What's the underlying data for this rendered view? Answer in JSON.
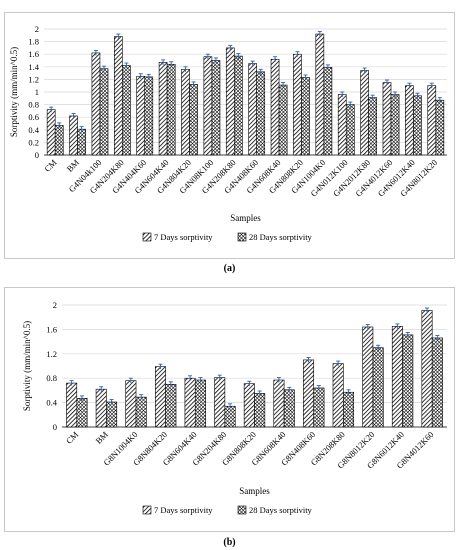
{
  "colors": {
    "bar_fill": "#ffffff",
    "bar_stroke": "#000000",
    "error_bar": "#2f5eb3",
    "grid": "#d9d9d9",
    "axis": "#000000"
  },
  "panels": [
    {
      "caption_label": "(a)",
      "legend": {
        "series_1": "7 Days sorptivity",
        "series_2": "28 Days sorptivity"
      },
      "chart_data": {
        "type": "bar",
        "xlabel": "Samples",
        "ylabel": "Sorptivity (mm/min^0.5)",
        "ylim": [
          0,
          2
        ],
        "yticks": [
          "0",
          "0.2",
          "0.4",
          "0.6",
          "0.8",
          "1",
          "1.2",
          "1.4",
          "1.6",
          "1.8",
          "2"
        ],
        "grid": true,
        "legend_position": "bottom",
        "categories": [
          "CM",
          "BM",
          "G4N04k100",
          "G4N204K80",
          "G4N404K60",
          "G4N604K40",
          "G4N804K20",
          "G4N08K100",
          "G4N208K80",
          "G4N408K60",
          "G4N608K40",
          "G4N808K20",
          "G4N1004K0",
          "G4N012K100",
          "G4N2012K80",
          "G4N4012K60",
          "G4N6012K40",
          "G4N8012K20"
        ],
        "series": [
          {
            "name": "7 Days sorptivity",
            "pattern": "diag",
            "values": [
              0.72,
              0.62,
              1.62,
              1.88,
              1.25,
              1.47,
              1.36,
              1.56,
              1.7,
              1.45,
              1.52,
              1.6,
              1.92,
              0.96,
              1.34,
              1.15,
              1.1,
              1.1
            ]
          },
          {
            "name": "28 Days sorptivity",
            "pattern": "cross",
            "values": [
              0.47,
              0.41,
              1.37,
              1.42,
              1.24,
              1.44,
              1.12,
              1.5,
              1.57,
              1.32,
              1.11,
              1.23,
              1.39,
              0.8,
              0.91,
              0.96,
              0.94,
              0.87
            ]
          }
        ],
        "error_bars": [
          0.04,
          0.04
        ]
      }
    },
    {
      "caption_label": "(b)",
      "legend": {
        "series_1": "7 Days sorptivity",
        "series_2": "28 Days sorptivity"
      },
      "chart_data": {
        "type": "bar",
        "xlabel": "Samples",
        "ylabel": "Sorptivity (mm/min^0.5)",
        "ylim": [
          0,
          2
        ],
        "yticks": [
          "0",
          "0.4",
          "0.8",
          "1.2",
          "1.6",
          "2"
        ],
        "grid": true,
        "legend_position": "bottom",
        "categories": [
          "CM",
          "BM",
          "G8N1004K0",
          "G8N804K20",
          "G8N604K40",
          "G8N204K80",
          "G8N808K20",
          "G8N608K40",
          "G8N408K60",
          "G8N208K80",
          "G8N8012K20",
          "G8N6012K40",
          "G8N4012K60"
        ],
        "series": [
          {
            "name": "7 Days sorptivity",
            "pattern": "diag",
            "values": [
              0.72,
              0.62,
              0.76,
              0.99,
              0.8,
              0.81,
              0.71,
              0.77,
              1.1,
              1.04,
              1.64,
              1.65,
              1.91
            ]
          },
          {
            "name": "28 Days sorptivity",
            "pattern": "cross",
            "values": [
              0.47,
              0.41,
              0.49,
              0.7,
              0.77,
              0.34,
              0.55,
              0.61,
              0.64,
              0.57,
              1.3,
              1.51,
              1.46
            ]
          }
        ],
        "error_bars": [
          0.04,
          0.04
        ]
      }
    }
  ]
}
